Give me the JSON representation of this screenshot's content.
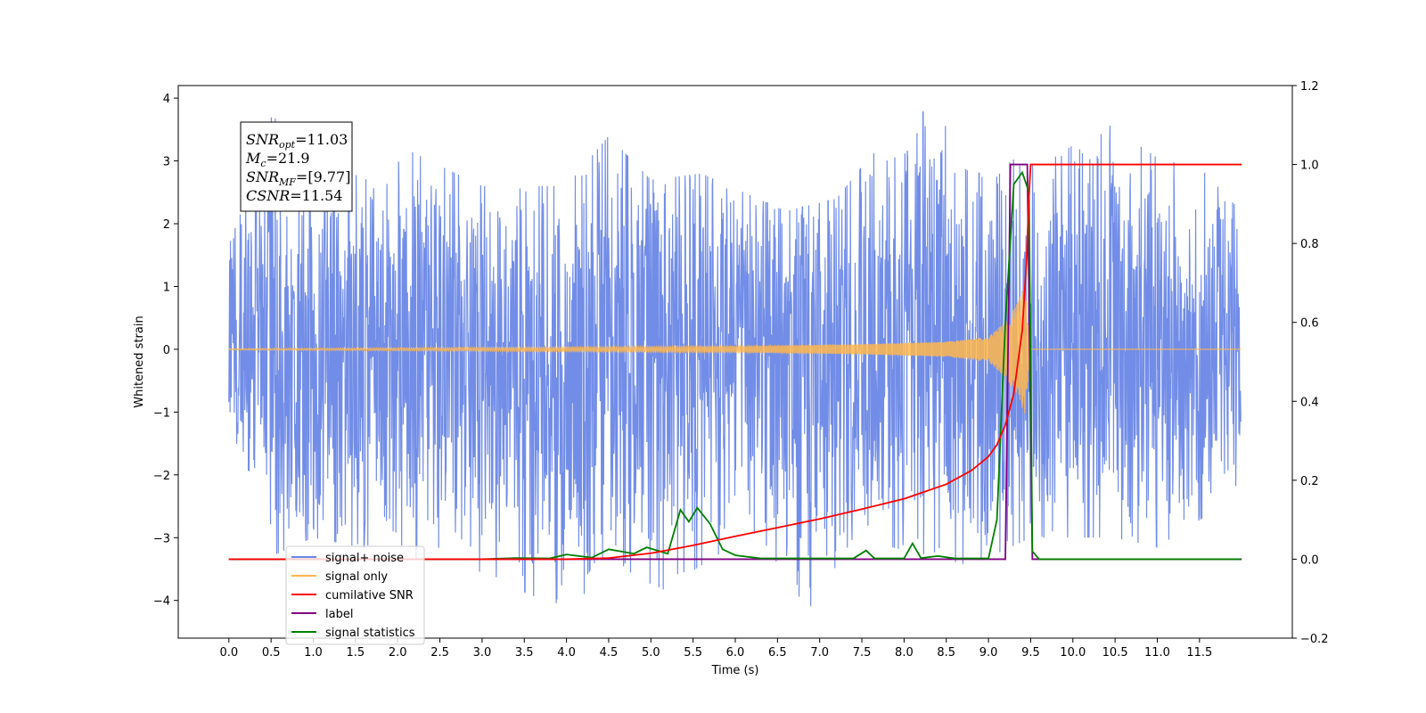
{
  "chart_data": {
    "type": "line",
    "xlabel": "Time (s)",
    "ylabel_left": "Whitened strain",
    "ylabel_right": "",
    "xlim": [
      -0.6,
      12.6
    ],
    "ylim_left": [
      -4.6,
      4.2
    ],
    "ylim_right": [
      -0.2,
      1.2
    ],
    "x_ticks": [
      0.0,
      0.5,
      1.0,
      1.5,
      2.0,
      2.5,
      3.0,
      3.5,
      4.0,
      4.5,
      5.0,
      5.5,
      6.0,
      6.5,
      7.0,
      7.5,
      8.0,
      8.5,
      9.0,
      9.5,
      10.0,
      10.5,
      11.0,
      11.5
    ],
    "x_tick_labels": [
      "0.0",
      "0.5",
      "1.0",
      "1.5",
      "2.0",
      "2.5",
      "3.0",
      "3.5",
      "4.0",
      "4.5",
      "5.0",
      "5.5",
      "6.0",
      "6.5",
      "7.0",
      "7.5",
      "8.0",
      "8.5",
      "9.0",
      "9.5",
      "10.0",
      "10.5",
      "11.0",
      "11.5"
    ],
    "y_left_ticks": [
      -4,
      -3,
      -2,
      -1,
      0,
      1,
      2,
      3,
      4
    ],
    "y_left_tick_labels": [
      "−4",
      "−3",
      "−2",
      "−1",
      "0",
      "1",
      "2",
      "3",
      "4"
    ],
    "y_right_ticks": [
      -0.2,
      0.0,
      0.2,
      0.4,
      0.6,
      0.8,
      1.0,
      1.2
    ],
    "y_right_tick_labels": [
      "−0.2",
      "0.0",
      "0.2",
      "0.4",
      "0.6",
      "0.8",
      "1.0",
      "1.2"
    ],
    "grid": false,
    "legend_position": "lower-left",
    "info_box": {
      "lines": [
        {
          "var": "SNR",
          "sub": "opt",
          "value": "=11.03"
        },
        {
          "var": "M",
          "sub": "c",
          "value": "=21.9"
        },
        {
          "var": "SNR",
          "sub": "MF",
          "value": "=[9.77]"
        },
        {
          "var": "CSNR",
          "sub": "",
          "value": "=11.54"
        }
      ]
    },
    "series": [
      {
        "name": "signal+ noise",
        "axis": "left",
        "color": "#6a87e6",
        "t_range": [
          0.0,
          12.0
        ],
        "envelope_max": [
          [
            0.0,
            1.9
          ],
          [
            0.5,
            3.75
          ],
          [
            1.0,
            3.0
          ],
          [
            2.0,
            3.25
          ],
          [
            3.0,
            2.6
          ],
          [
            4.0,
            2.6
          ],
          [
            4.5,
            3.4
          ],
          [
            5.0,
            2.7
          ],
          [
            5.6,
            2.8
          ],
          [
            6.6,
            2.2
          ],
          [
            7.2,
            2.4
          ],
          [
            7.9,
            3.6
          ],
          [
            8.2,
            3.8
          ],
          [
            8.5,
            3.55
          ],
          [
            9.0,
            2.6
          ],
          [
            9.3,
            3.05
          ],
          [
            9.6,
            2.9
          ],
          [
            10.4,
            3.6
          ],
          [
            11.0,
            3.05
          ],
          [
            11.5,
            2.9
          ],
          [
            11.99,
            2.2
          ]
        ],
        "envelope_min": [
          [
            0.0,
            -1.1
          ],
          [
            0.5,
            -3.3
          ],
          [
            1.0,
            -3.0
          ],
          [
            3.0,
            -3.55
          ],
          [
            3.8,
            -4.05
          ],
          [
            5.0,
            -3.95
          ],
          [
            6.0,
            -3.1
          ],
          [
            6.9,
            -4.1
          ],
          [
            7.4,
            -3.0
          ],
          [
            8.0,
            -3.2
          ],
          [
            8.8,
            -3.45
          ],
          [
            9.5,
            -3.0
          ],
          [
            10.5,
            -3.0
          ],
          [
            11.0,
            -3.15
          ],
          [
            11.99,
            -2.3
          ]
        ]
      },
      {
        "name": "signal only",
        "axis": "left",
        "color": "#ffb74d",
        "t_range": [
          0.0,
          12.0
        ],
        "amplitude": [
          [
            0.0,
            0.01
          ],
          [
            6.0,
            0.05
          ],
          [
            7.5,
            0.08
          ],
          [
            8.5,
            0.12
          ],
          [
            9.0,
            0.2
          ],
          [
            9.2,
            0.45
          ],
          [
            9.35,
            0.75
          ],
          [
            9.43,
            1.05
          ],
          [
            9.48,
            0.3
          ],
          [
            9.5,
            0.0
          ],
          [
            12.0,
            0.0
          ]
        ]
      },
      {
        "name": "cumilative SNR",
        "axis": "right",
        "color": "#ff0000",
        "points": [
          [
            0.0,
            0.0
          ],
          [
            4.0,
            0.0
          ],
          [
            4.5,
            0.003
          ],
          [
            5.0,
            0.015
          ],
          [
            5.5,
            0.035
          ],
          [
            6.0,
            0.058
          ],
          [
            6.5,
            0.08
          ],
          [
            7.0,
            0.102
          ],
          [
            7.5,
            0.127
          ],
          [
            8.0,
            0.153
          ],
          [
            8.5,
            0.19
          ],
          [
            8.8,
            0.225
          ],
          [
            9.0,
            0.26
          ],
          [
            9.1,
            0.29
          ],
          [
            9.2,
            0.34
          ],
          [
            9.3,
            0.42
          ],
          [
            9.4,
            0.58
          ],
          [
            9.45,
            0.75
          ],
          [
            9.48,
            0.92
          ],
          [
            9.5,
            1.0
          ],
          [
            12.0,
            1.0
          ]
        ]
      },
      {
        "name": "label",
        "axis": "right",
        "color": "#800080",
        "points": [
          [
            0.0,
            0.0
          ],
          [
            9.2,
            0.0
          ],
          [
            9.26,
            1.0
          ],
          [
            9.46,
            1.0
          ],
          [
            9.52,
            0.0
          ],
          [
            12.0,
            0.0
          ]
        ]
      },
      {
        "name": "signal statistics",
        "axis": "right",
        "color": "#008000",
        "points": [
          [
            0.0,
            0.0
          ],
          [
            3.0,
            0.0
          ],
          [
            3.4,
            0.003
          ],
          [
            3.8,
            0.002
          ],
          [
            4.0,
            0.012
          ],
          [
            4.3,
            0.004
          ],
          [
            4.5,
            0.025
          ],
          [
            4.8,
            0.014
          ],
          [
            4.95,
            0.03
          ],
          [
            5.2,
            0.014
          ],
          [
            5.35,
            0.125
          ],
          [
            5.45,
            0.095
          ],
          [
            5.55,
            0.13
          ],
          [
            5.7,
            0.09
          ],
          [
            5.85,
            0.025
          ],
          [
            6.0,
            0.01
          ],
          [
            6.3,
            0.002
          ],
          [
            7.4,
            0.002
          ],
          [
            7.55,
            0.022
          ],
          [
            7.65,
            0.002
          ],
          [
            8.0,
            0.002
          ],
          [
            8.1,
            0.04
          ],
          [
            8.2,
            0.003
          ],
          [
            8.4,
            0.008
          ],
          [
            8.6,
            0.002
          ],
          [
            9.0,
            0.002
          ],
          [
            9.1,
            0.1
          ],
          [
            9.2,
            0.6
          ],
          [
            9.3,
            0.95
          ],
          [
            9.4,
            0.98
          ],
          [
            9.48,
            0.93
          ],
          [
            9.52,
            0.02
          ],
          [
            9.6,
            0.0
          ],
          [
            11.99,
            0.0
          ]
        ]
      }
    ]
  }
}
